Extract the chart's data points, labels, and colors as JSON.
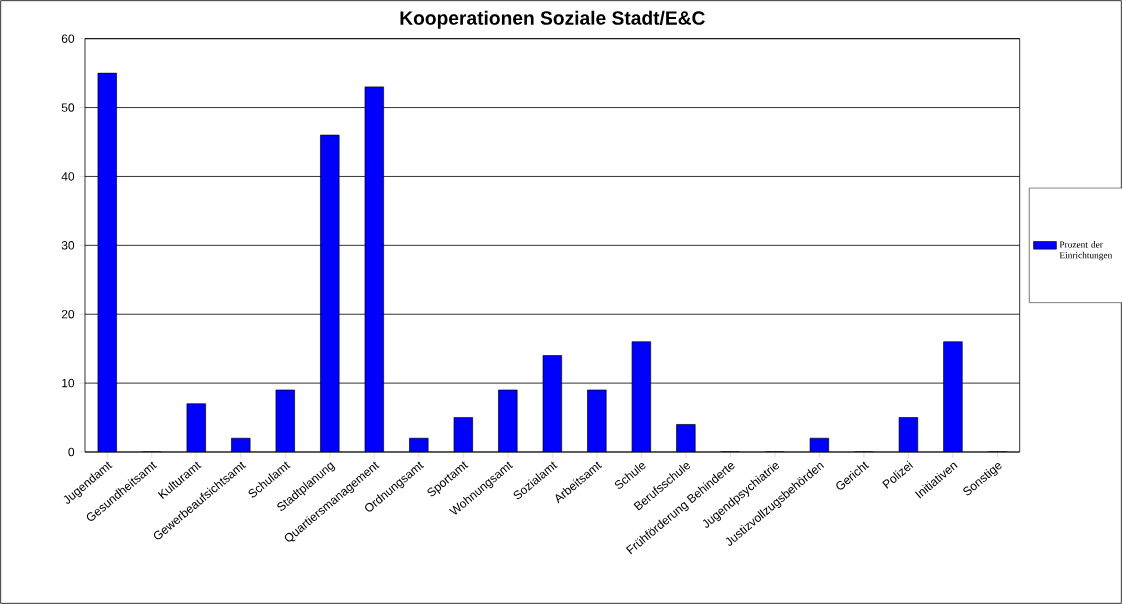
{
  "chart_data": {
    "type": "bar",
    "title": "Kooperationen Soziale Stadt/E&C",
    "categories": [
      "Jugendamt",
      "Gesundheitsamt",
      "Kulturamt",
      "Gewerbeaufsichtsamt",
      "Schulamt",
      "Stadtplanung",
      "Quartiersmanagement",
      "Ordnungsamt",
      "Sportamt",
      "Wohnungsamt",
      "Sozialamt",
      "Arbeitsamt",
      "Schule",
      "Berufsschule",
      "Frühförderung Behinderte",
      "Jugendpsychiatrie",
      "Justizvollzugsbehörden",
      "Gericht",
      "Polizei",
      "Initiativen",
      "Sonstige"
    ],
    "series": [
      {
        "name": "Prozent der Einrichtungen",
        "color": "#0000ff",
        "values": [
          55,
          0,
          7,
          2,
          9,
          46,
          53,
          2,
          5,
          9,
          14,
          9,
          16,
          4,
          0,
          0,
          2,
          0,
          5,
          16,
          0
        ]
      }
    ],
    "ylim": [
      0,
      60
    ],
    "yticks": [
      0,
      10,
      20,
      30,
      40,
      50,
      60
    ],
    "grid": "y",
    "legend": "right"
  }
}
